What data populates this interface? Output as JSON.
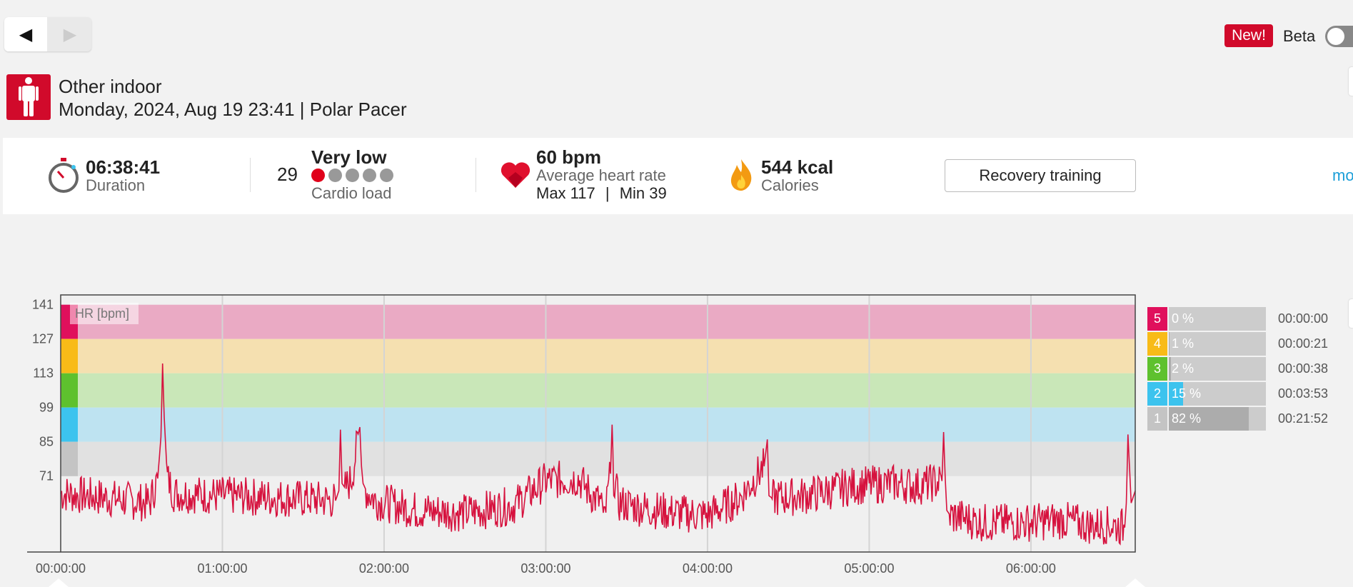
{
  "nav": {
    "back_icon": "◀",
    "forward_icon": "▶"
  },
  "header": {
    "new_badge": "New!",
    "beta_label": "Beta"
  },
  "session": {
    "sport": "Other indoor",
    "meta": "Monday, 2024, Aug 19 23:41 | Polar Pacer",
    "icon": "person-standing-icon",
    "accent_color": "#d10a2b"
  },
  "summary": {
    "duration_value": "06:38:41",
    "duration_label": "Duration",
    "cardio_value": "29",
    "cardio_status": "Very low",
    "cardio_label": "Cardio load",
    "cardio_dots_filled": 1,
    "cardio_dots_total": 5,
    "hr_value": "60 bpm",
    "hr_label": "Average heart rate",
    "hr_max_label": "Max 117",
    "hr_sep": "|",
    "hr_min_label": "Min 39",
    "calories_value": "544 kcal",
    "calories_label": "Calories",
    "benefit_button": "Recovery training",
    "more_link": "mo"
  },
  "chart_data": {
    "type": "line",
    "label": "HR [bpm]",
    "y_ticks": [
      "141",
      "127",
      "113",
      "99",
      "85",
      "71"
    ],
    "ylim": [
      40,
      145
    ],
    "x_ticks": [
      "00:00:00",
      "01:00:00",
      "02:00:00",
      "03:00:00",
      "04:00:00",
      "05:00:00",
      "06:00:00"
    ],
    "duration_hours": 6.645,
    "line_color": "#d6123e",
    "zones": [
      {
        "zone": 5,
        "min": 127,
        "max": 141,
        "color": "#eaaac4",
        "marker": "#e0105c"
      },
      {
        "zone": 4,
        "min": 113,
        "max": 127,
        "color": "#f5e0b0",
        "marker": "#f8bb18"
      },
      {
        "zone": 3,
        "min": 99,
        "max": 113,
        "color": "#c9e7b8",
        "marker": "#5ec12e"
      },
      {
        "zone": 2,
        "min": 85,
        "max": 99,
        "color": "#bee3f1",
        "marker": "#3cc3ee"
      },
      {
        "zone": 1,
        "min": 71,
        "max": 85,
        "color": "#e1e1e1",
        "marker": "#c4c4c4"
      }
    ],
    "series": [
      {
        "x_hours": [
          0,
          0.3,
          0.55,
          0.6,
          0.62,
          0.63,
          0.64,
          0.66,
          0.7,
          1.0,
          1.4,
          1.7,
          1.72,
          1.73,
          1.74,
          1.76,
          1.8,
          1.85,
          1.86,
          1.87,
          1.89,
          1.95,
          2.2,
          2.5,
          2.8,
          3.0,
          3.2,
          3.3,
          3.35,
          3.36,
          3.4,
          3.41,
          3.42,
          3.45,
          3.6,
          3.8,
          4.0,
          4.2,
          4.35,
          4.37,
          4.38,
          4.4,
          4.6,
          4.9,
          5.15,
          5.3,
          5.45,
          5.46,
          5.47,
          5.48,
          5.5,
          5.7,
          5.95,
          6.2,
          6.35,
          6.5,
          6.58,
          6.59,
          6.6,
          6.62,
          6.645
        ],
        "values": [
          64,
          62,
          60,
          70,
          87,
          117,
          95,
          70,
          64,
          63,
          62,
          61,
          65,
          90,
          68,
          66,
          70,
          91,
          75,
          68,
          65,
          61,
          57,
          56,
          59,
          69,
          70,
          62,
          60,
          52,
          72,
          92,
          71,
          60,
          58,
          56,
          55,
          62,
          75,
          86,
          63,
          62,
          63,
          67,
          68,
          67,
          69,
          89,
          70,
          57,
          55,
          52,
          52,
          53,
          51,
          51,
          50,
          60,
          88,
          60,
          65
        ]
      }
    ],
    "zone_summary": [
      {
        "zone": "5",
        "percent": "0 %",
        "fraction": 0.0,
        "time": "00:00:00",
        "color": "#e0105c"
      },
      {
        "zone": "4",
        "percent": "1 %",
        "fraction": 0.01,
        "time": "00:00:21",
        "color": "#f8bb18"
      },
      {
        "zone": "3",
        "percent": "2 %",
        "fraction": 0.02,
        "time": "00:00:38",
        "color": "#5ec12e"
      },
      {
        "zone": "2",
        "percent": "15 %",
        "fraction": 0.15,
        "time": "00:03:53",
        "color": "#3cc3ee"
      },
      {
        "zone": "1",
        "percent": "82 %",
        "fraction": 0.82,
        "time": "00:21:52",
        "color": "#c4c4c4"
      }
    ]
  }
}
